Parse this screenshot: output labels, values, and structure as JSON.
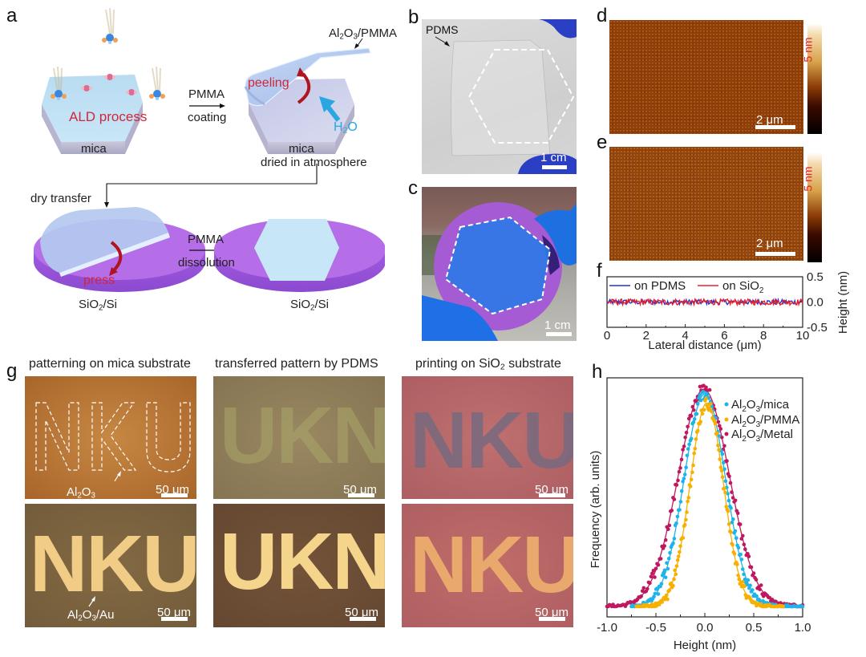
{
  "panel_letters": {
    "a": "a",
    "b": "b",
    "c": "c",
    "d": "d",
    "e": "e",
    "f": "f",
    "g": "g",
    "h": "h"
  },
  "panel_a": {
    "ald_process": "ALD process",
    "mica_1": "mica",
    "pmma_1": "PMMA",
    "coating": "coating",
    "peeling": "peeling",
    "film_label": {
      "pre": "Al",
      "s1": "2",
      "mid": "O",
      "s2": "3",
      "post": "/PMMA"
    },
    "h2o": {
      "pre": "H",
      "s": "2",
      "post": "O"
    },
    "mica_2": "mica",
    "dried": "dried in atmosphere",
    "dry_transfer": "dry transfer",
    "press": "press",
    "pmma_2": "PMMA",
    "dissolution": "dissolution",
    "substrate": {
      "pre": "SiO",
      "s": "2",
      "post": "/Si"
    }
  },
  "panel_b": {
    "pdms_label": "PDMS",
    "scale": "1 cm"
  },
  "panel_c": {
    "scale": "1 cm"
  },
  "panel_d": {
    "scale": "2 μm",
    "colorbar": "5 nm"
  },
  "panel_e": {
    "scale": "2 μm",
    "colorbar": "5 nm"
  },
  "panel_g": {
    "titles": [
      "patterning on mica substrate",
      "transferred pattern by PDMS",
      {
        "pre": "printing on SiO",
        "s": "2",
        "post": " substrate"
      }
    ],
    "scale": "50 μm",
    "top_letters": [
      "NKU",
      "UKN",
      "NKU"
    ],
    "bottom_letters": [
      "NKU",
      "UKN",
      "NKU"
    ],
    "annot_top": {
      "pre": "Al",
      "s1": "2",
      "mid": "O",
      "s2": "3",
      "post": ""
    },
    "annot_bottom": {
      "pre": "Al",
      "s1": "2",
      "mid": "O",
      "s2": "3",
      "post": "/Au"
    }
  },
  "colors": {
    "mica_bg": "#b9783a",
    "pdms_bg": "#8e7c55",
    "sio2_bg": "#b8656a",
    "au_mica_bg": "#7a6440",
    "au_pdms_bg": "#6a4d35",
    "au_sio2_bg": "#b46664",
    "au_letters": "#f2cf86",
    "sio2_letters": "#7a6a7e",
    "pdms_letters": "#a19c5e",
    "afm": "#8f3f0a",
    "pdms_line": "#2233cc",
    "sio2_line": "#e8202a",
    "mica_series": "#1eb4ea",
    "pmma_series": "#f7b000",
    "metal_series": "#c0185e"
  },
  "chart_data": [
    {
      "type": "line",
      "panel": "f",
      "xlabel": "Lateral distance  (μm)",
      "ylabel": "Height  (nm)",
      "xlim": [
        0,
        10
      ],
      "ylim": [
        -0.5,
        0.5
      ],
      "xticks": [
        "0",
        "2",
        "4",
        "6",
        "8",
        "10"
      ],
      "yticks": [
        "0.5",
        "0.0",
        "-0.5"
      ],
      "legend_position": "top",
      "series": [
        {
          "name": "on PDMS",
          "legend": {
            "pre": "on PDMS",
            "s": "",
            "post": ""
          },
          "mean": 0.0,
          "noise_amplitude": 0.05
        },
        {
          "name": "on SiO2",
          "legend": {
            "pre": "on SiO",
            "s": "2",
            "post": ""
          },
          "mean": 0.0,
          "noise_amplitude": 0.06
        }
      ]
    },
    {
      "type": "scatter",
      "panel": "h",
      "xlabel": "Height  (nm)",
      "ylabel": "Frequency  (arb. units)",
      "xlim": [
        -1.0,
        1.0
      ],
      "xticks": [
        "-1.0",
        "-0.5",
        "0.0",
        "0.5",
        "1.0"
      ],
      "legend_position": "top-right",
      "series": [
        {
          "name": "Al2O3/mica",
          "legend": {
            "pre": "Al",
            "s1": "2",
            "mid": "O",
            "s2": "3",
            "post": "/mica"
          },
          "center": 0.0,
          "sigma": 0.21,
          "peak": 0.93,
          "x_range": [
            -0.75,
            1.0
          ]
        },
        {
          "name": "Al2O3/PMMA",
          "legend": {
            "pre": "Al",
            "s1": "2",
            "mid": "O",
            "s2": "3",
            "post": "/PMMA"
          },
          "center": 0.02,
          "sigma": 0.17,
          "peak": 0.89,
          "x_range": [
            -0.7,
            0.8
          ]
        },
        {
          "name": "Al2O3/Metal",
          "legend": {
            "pre": "Al",
            "s1": "2",
            "mid": "O",
            "s2": "3",
            "post": "/Metal"
          },
          "center": -0.01,
          "sigma": 0.26,
          "peak": 0.95,
          "x_range": [
            -1.0,
            1.0
          ]
        }
      ]
    }
  ]
}
